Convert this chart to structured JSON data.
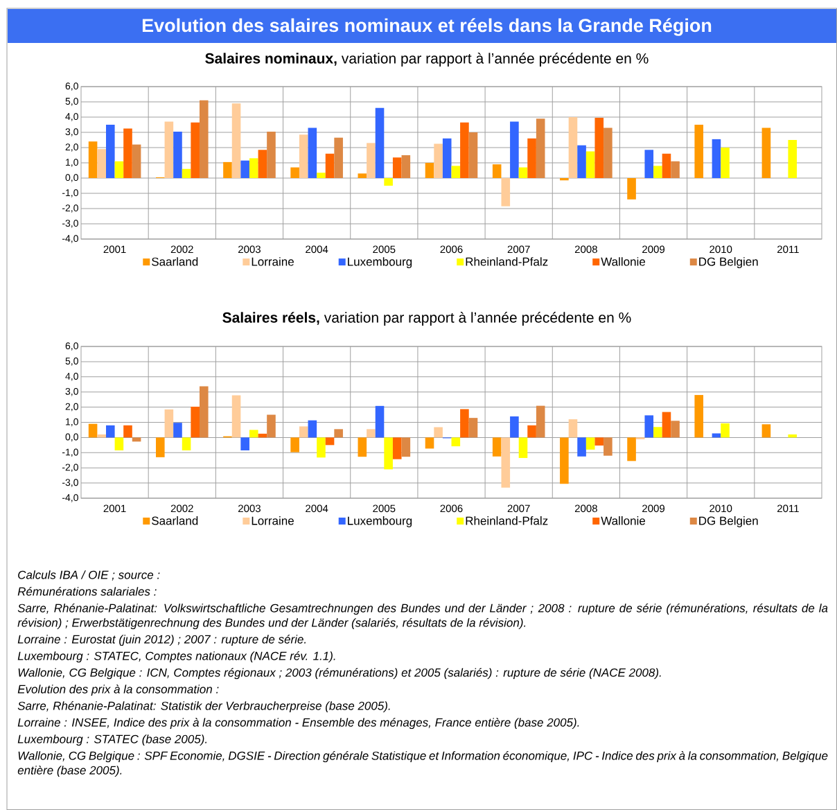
{
  "chart_data": [
    {
      "type": "bar",
      "title": "Evolution des salaires nominaux et réels dans la Grande Région",
      "subtitle": "**Salaires nominaux,** variation par rapport à l’année précédente en %",
      "categories": [
        "2001",
        "2002",
        "2003",
        "2004",
        "2005",
        "2006",
        "2007",
        "2008",
        "2009",
        "2010",
        "2011"
      ],
      "series": [
        {
          "name": "Saarland",
          "color": "#ff9900",
          "values": [
            2.4,
            0.05,
            1.05,
            0.7,
            0.3,
            1.0,
            0.9,
            -0.15,
            -1.4,
            3.5,
            3.3
          ]
        },
        {
          "name": "Lorraine",
          "color": "#ffcc99",
          "values": [
            1.9,
            3.7,
            4.9,
            2.85,
            2.3,
            2.25,
            -1.85,
            4.0,
            -0.05,
            null,
            null
          ]
        },
        {
          "name": "Luxembourg",
          "color": "#3366ff",
          "values": [
            3.5,
            3.05,
            1.15,
            3.3,
            4.6,
            2.6,
            3.7,
            2.15,
            1.85,
            2.55,
            null
          ]
        },
        {
          "name": "Rheinland-Pfalz",
          "color": "#ffff00",
          "values": [
            1.1,
            0.6,
            1.3,
            0.35,
            -0.5,
            0.8,
            0.7,
            1.75,
            0.8,
            2.0,
            2.5
          ]
        },
        {
          "name": "Wallonie",
          "color": "#ff6600",
          "values": [
            3.25,
            3.65,
            1.85,
            1.6,
            1.35,
            3.65,
            2.6,
            3.95,
            1.6,
            null,
            null
          ]
        },
        {
          "name": "DG Belgien",
          "color": "#dd8844",
          "values": [
            2.2,
            5.1,
            3.05,
            2.65,
            1.5,
            3.0,
            3.9,
            3.3,
            1.1,
            null,
            null
          ]
        }
      ],
      "ylim": [
        -4,
        6
      ],
      "yticks": [
        {
          "value": -4,
          "label": "-4,0"
        },
        {
          "value": -3,
          "label": "-3,0"
        },
        {
          "value": -2,
          "label": "-2,0"
        },
        {
          "value": -1,
          "label": "-1,0"
        },
        {
          "value": 0,
          "label": "0,0"
        },
        {
          "value": 1,
          "label": "1,0"
        },
        {
          "value": 2,
          "label": "2,0"
        },
        {
          "value": 3,
          "label": "3,0"
        },
        {
          "value": 4,
          "label": "4,0"
        },
        {
          "value": 5,
          "label": "5,0"
        },
        {
          "value": 6,
          "label": "6,0"
        }
      ],
      "grid": true,
      "legend": "bottom"
    },
    {
      "type": "bar",
      "title": "**Salaires réels,** variation par rapport à l’année précédente en %",
      "categories": [
        "2001",
        "2002",
        "2003",
        "2004",
        "2005",
        "2006",
        "2007",
        "2008",
        "2009",
        "2010",
        "2011"
      ],
      "series": [
        {
          "name": "Saarland",
          "color": "#ff9900",
          "values": [
            0.9,
            -1.3,
            0.08,
            -0.97,
            -1.27,
            -0.73,
            -1.25,
            -3.05,
            -1.55,
            2.8,
            0.87
          ]
        },
        {
          "name": "Lorraine",
          "color": "#ffcc99",
          "values": [
            0.2,
            1.85,
            2.78,
            0.73,
            0.55,
            0.68,
            -3.3,
            1.2,
            -0.12,
            null,
            null
          ]
        },
        {
          "name": "Luxembourg",
          "color": "#3366ff",
          "values": [
            0.8,
            0.97,
            -0.85,
            1.13,
            2.08,
            -0.05,
            1.39,
            -1.25,
            1.46,
            0.27,
            null
          ]
        },
        {
          "name": "Rheinland-Pfalz",
          "color": "#ffff00",
          "values": [
            -0.85,
            -0.85,
            0.5,
            -1.32,
            -2.1,
            -0.58,
            -1.35,
            -0.8,
            0.69,
            0.93,
            0.2
          ]
        },
        {
          "name": "Wallonie",
          "color": "#ff6600",
          "values": [
            0.8,
            2.03,
            0.25,
            -0.5,
            -1.43,
            1.87,
            0.8,
            -0.53,
            1.68,
            null,
            null
          ]
        },
        {
          "name": "DG Belgien",
          "color": "#dd8844",
          "values": [
            -0.27,
            3.37,
            1.5,
            0.55,
            -1.27,
            1.29,
            2.09,
            -1.2,
            1.1,
            null,
            null
          ]
        }
      ],
      "ylim": [
        -4,
        6
      ],
      "yticks": [
        {
          "value": -4,
          "label": "-4,0"
        },
        {
          "value": -3,
          "label": "-3,0"
        },
        {
          "value": -2,
          "label": "-2,0"
        },
        {
          "value": -1,
          "label": "-1,0"
        },
        {
          "value": 0,
          "label": "0,0"
        },
        {
          "value": 1,
          "label": "1,0"
        },
        {
          "value": 2,
          "label": "2,0"
        },
        {
          "value": 3,
          "label": "3,0"
        },
        {
          "value": 4,
          "label": "4,0"
        },
        {
          "value": 5,
          "label": "5,0"
        },
        {
          "value": 6,
          "label": "6,0"
        }
      ],
      "grid": true,
      "legend": "bottom",
      "annotations": [
        "Calculs IBA / OIE ; source :",
        "Rémunérations salariales :",
        "Sarre, Rhénanie-Palatinat: Volkswirtschaftliche Gesamtrechnungen des Bundes und der Länder ; 2008 : rupture de série (rémunérations, résultats de la révision) ; Erwerbstätigenrechnung des Bundes und der Länder (salariés, résultats de la révision).",
        "Lorraine : Eurostat (juin 2012) ; 2007 : rupture de série.",
        "Luxembourg : STATEC, Comptes nationaux (NACE rév. 1.1).",
        "Wallonie, CG Belgique : ICN, Comptes régionaux ; 2003 (rémunérations) et 2005 (salariés) : rupture de série (NACE 2008).",
        "Evolution des prix à la consommation :",
        "Sarre, Rhénanie-Palatinat: Statistik der Verbraucherpreise (base 2005).",
        "Lorraine : INSEE, Indice des prix à la consommation - Ensemble des ménages, France entière (base 2005).",
        "Luxembourg : STATEC (base 2005).",
        "Wallonie, CG Belgique : SPF Economie, DGSIE - Direction générale Statistique et Information économique, IPC - Indice des prix à la consommation, Belgique entière (base 2005)."
      ]
    }
  ]
}
